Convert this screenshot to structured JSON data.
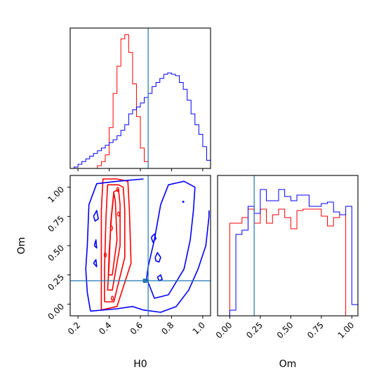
{
  "colors": {
    "series_a": "#ff0000",
    "series_b": "#0000ff",
    "truth": "#1f77b4",
    "axis": "#000000"
  },
  "chart_data": {
    "type": "corner",
    "parameters": [
      "H0",
      "Om"
    ],
    "truth": {
      "H0": 0.65,
      "Om": 0.2
    },
    "panels": [
      {
        "id": "hist_H0",
        "type": "histogram",
        "xlim": [
          0.15,
          1.05
        ],
        "xticks": [
          0.2,
          0.4,
          0.6,
          0.8,
          1.0
        ],
        "bin_width": 0.025,
        "series": [
          {
            "color": "red",
            "bins_start": 0.275,
            "counts": [
              0,
              0,
              2,
              5,
              10,
              30,
              55,
              75,
              95,
              98,
              85,
              62,
              38,
              15,
              5,
              0
            ]
          },
          {
            "color": "blue",
            "bins_start": 0.15,
            "counts": [
              0,
              1,
              3,
              5,
              7,
              9,
              11,
              13,
              15,
              17,
              19,
              21,
              24,
              28,
              32,
              40,
              43,
              45,
              48,
              52,
              55,
              60,
              63,
              66,
              69,
              70,
              69,
              68,
              63,
              58,
              50,
              40,
              32,
              25,
              16,
              6
            ]
          }
        ]
      },
      {
        "id": "hist_Om",
        "type": "histogram",
        "xlim": [
          -0.1,
          1.05
        ],
        "xticks": [
          0.0,
          0.25,
          0.5,
          0.75,
          1.0
        ],
        "xticklabels": [
          "0.00",
          "0.25",
          "0.50",
          "0.75",
          "1.00"
        ],
        "xlabel": "Om",
        "bin_width": 0.05,
        "series": [
          {
            "color": "red",
            "bins_start": 0.0,
            "counts": [
              66,
              66,
              70,
              76,
              66,
              76,
              66,
              72,
              76,
              70,
              62,
              75,
              76,
              76,
              76,
              71,
              64,
              70,
              72,
              0
            ]
          },
          {
            "color": "blue",
            "bins_start": -0.05,
            "counts": [
              0,
              4,
              58,
              61,
              78,
              73,
              90,
              82,
              82,
              90,
              85,
              82,
              86,
              86,
              78,
              78,
              80,
              81,
              74,
              72,
              78,
              8
            ]
          }
        ]
      },
      {
        "id": "contour_H0_Om",
        "type": "contour",
        "xlim": [
          0.15,
          1.05
        ],
        "ylim": [
          -0.1,
          1.1
        ],
        "xticks": [
          0.2,
          0.4,
          0.6,
          0.8,
          1.0
        ],
        "yticks": [
          0.0,
          0.25,
          0.5,
          0.75,
          1.0
        ],
        "yticklabels": [
          "0.00",
          "0.25",
          "0.50",
          "0.75",
          "1.00"
        ],
        "xlabel": "H0",
        "ylabel": "Om",
        "red_contours": [
          [
            [
              0.35,
              -0.05
            ],
            [
              0.45,
              -0.02
            ],
            [
              0.54,
              0.35
            ],
            [
              0.53,
              0.8
            ],
            [
              0.52,
              1.05
            ],
            [
              0.45,
              1.07
            ],
            [
              0.36,
              1.07
            ],
            [
              0.35,
              0.8
            ],
            [
              0.35,
              0.3
            ],
            [
              0.35,
              -0.05
            ]
          ],
          [
            [
              0.37,
              0.02
            ],
            [
              0.43,
              0.02
            ],
            [
              0.5,
              0.4
            ],
            [
              0.5,
              0.8
            ],
            [
              0.49,
              1.0
            ],
            [
              0.46,
              1.02
            ],
            [
              0.39,
              1.02
            ],
            [
              0.38,
              0.75
            ],
            [
              0.37,
              0.3
            ],
            [
              0.37,
              0.02
            ]
          ],
          [
            [
              0.39,
              0.12
            ],
            [
              0.42,
              0.12
            ],
            [
              0.47,
              0.5
            ],
            [
              0.47,
              0.85
            ],
            [
              0.46,
              0.98
            ],
            [
              0.43,
              0.96
            ],
            [
              0.41,
              0.7
            ],
            [
              0.4,
              0.35
            ],
            [
              0.39,
              0.12
            ]
          ],
          [
            [
              0.395,
              0.25
            ],
            [
              0.42,
              0.25
            ],
            [
              0.45,
              0.55
            ],
            [
              0.44,
              0.88
            ],
            [
              0.43,
              0.95
            ],
            [
              0.415,
              0.75
            ],
            [
              0.4,
              0.45
            ],
            [
              0.395,
              0.25
            ]
          ]
        ],
        "red_specks": [
          [
            0.375,
            0.42
          ],
          [
            0.415,
            0.65
          ],
          [
            0.46,
            0.77
          ],
          [
            0.455,
            0.98
          ],
          [
            0.42,
            0.05
          ]
        ],
        "blue_contours": [
          [
            [
              0.28,
              -0.06
            ],
            [
              0.45,
              -0.04
            ],
            [
              0.55,
              -0.02
            ],
            [
              0.62,
              -0.05
            ],
            [
              0.73,
              -0.07
            ],
            [
              0.83,
              -0.02
            ],
            [
              0.91,
              0.12
            ],
            [
              0.97,
              0.3
            ],
            [
              1.02,
              0.5
            ],
            [
              1.04,
              0.75
            ],
            [
              1.04,
              0.8
            ]
          ],
          [
            [
              0.62,
              1.07
            ],
            [
              0.45,
              1.05
            ],
            [
              0.32,
              1.03
            ],
            [
              0.27,
              0.85
            ],
            [
              0.26,
              0.5
            ],
            [
              0.25,
              0.3
            ],
            [
              0.26,
              0.1
            ],
            [
              0.28,
              -0.06
            ]
          ],
          [
            [
              0.64,
              0.22
            ],
            [
              0.69,
              0.05
            ],
            [
              0.78,
              0.08
            ],
            [
              0.88,
              0.3
            ],
            [
              0.92,
              0.55
            ],
            [
              0.94,
              0.8
            ],
            [
              0.95,
              1.0
            ],
            [
              0.88,
              1.05
            ],
            [
              0.78,
              1.02
            ],
            [
              0.73,
              0.85
            ],
            [
              0.69,
              0.55
            ],
            [
              0.65,
              0.32
            ],
            [
              0.64,
              0.22
            ]
          ],
          [
            [
              0.695,
              0.4
            ],
            [
              0.71,
              0.44
            ],
            [
              0.73,
              0.4
            ],
            [
              0.72,
              0.36
            ],
            [
              0.7,
              0.37
            ],
            [
              0.695,
              0.4
            ]
          ],
          [
            [
              0.67,
              0.57
            ],
            [
              0.69,
              0.6
            ],
            [
              0.7,
              0.56
            ],
            [
              0.68,
              0.53
            ],
            [
              0.67,
              0.57
            ]
          ],
          [
            [
              0.71,
              0.23
            ],
            [
              0.73,
              0.25
            ],
            [
              0.74,
              0.21
            ],
            [
              0.72,
              0.2
            ],
            [
              0.71,
              0.23
            ]
          ],
          [
            [
              0.3,
              0.75
            ],
            [
              0.32,
              0.8
            ],
            [
              0.33,
              0.73
            ],
            [
              0.31,
              0.71
            ],
            [
              0.3,
              0.75
            ]
          ],
          [
            [
              0.305,
              0.5
            ],
            [
              0.315,
              0.55
            ],
            [
              0.32,
              0.48
            ],
            [
              0.305,
              0.5
            ]
          ],
          [
            [
              0.3,
              0.35
            ],
            [
              0.315,
              0.38
            ],
            [
              0.32,
              0.32
            ],
            [
              0.3,
              0.35
            ]
          ]
        ],
        "blue_specks": [
          [
            0.875,
            0.875
          ]
        ],
        "truth_marker": [
          0.63,
          0.2
        ]
      }
    ]
  }
}
